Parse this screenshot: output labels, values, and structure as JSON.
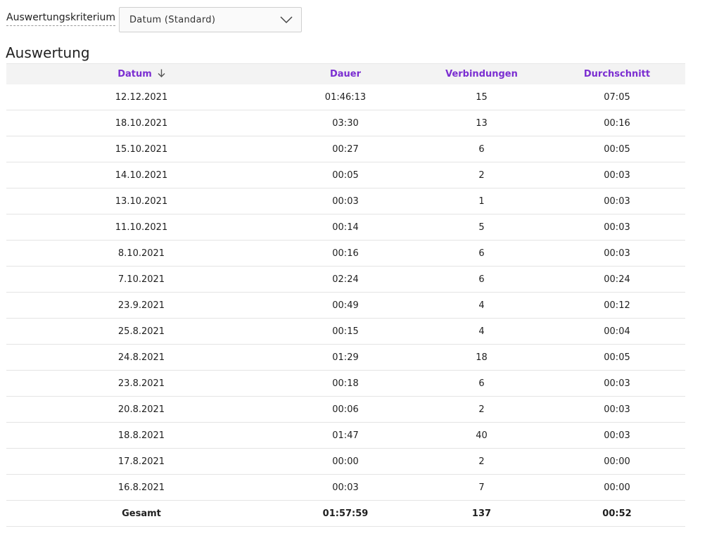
{
  "filter": {
    "label": "Auswertungskriterium",
    "selected": "Datum (Standard)"
  },
  "section_title": "Auswertung",
  "table": {
    "headers": [
      "Datum",
      "Dauer",
      "Verbindungen",
      "Durchschnitt"
    ],
    "sort_column": "Datum",
    "sort_direction": "descending",
    "rows": [
      [
        "12.12.2021",
        "01:46:13",
        "15",
        "07:05"
      ],
      [
        "18.10.2021",
        "03:30",
        "13",
        "00:16"
      ],
      [
        "15.10.2021",
        "00:27",
        "6",
        "00:05"
      ],
      [
        "14.10.2021",
        "00:05",
        "2",
        "00:03"
      ],
      [
        "13.10.2021",
        "00:03",
        "1",
        "00:03"
      ],
      [
        "11.10.2021",
        "00:14",
        "5",
        "00:03"
      ],
      [
        "8.10.2021",
        "00:16",
        "6",
        "00:03"
      ],
      [
        "7.10.2021",
        "02:24",
        "6",
        "00:24"
      ],
      [
        "23.9.2021",
        "00:49",
        "4",
        "00:12"
      ],
      [
        "25.8.2021",
        "00:15",
        "4",
        "00:04"
      ],
      [
        "24.8.2021",
        "01:29",
        "18",
        "00:05"
      ],
      [
        "23.8.2021",
        "00:18",
        "6",
        "00:03"
      ],
      [
        "20.8.2021",
        "00:06",
        "2",
        "00:03"
      ],
      [
        "18.8.2021",
        "01:47",
        "40",
        "00:03"
      ],
      [
        "17.8.2021",
        "00:00",
        "2",
        "00:00"
      ],
      [
        "16.8.2021",
        "00:03",
        "7",
        "00:00"
      ]
    ],
    "total": [
      "Gesamt",
      "01:57:59",
      "137",
      "00:52"
    ]
  },
  "colors": {
    "header_text": "#7b2ed1",
    "header_bg": "#f3f3f3",
    "row_border": "#e4e4e4"
  },
  "icons": {
    "sort": "arrow-down-icon",
    "dropdown": "chevron-down-icon"
  }
}
